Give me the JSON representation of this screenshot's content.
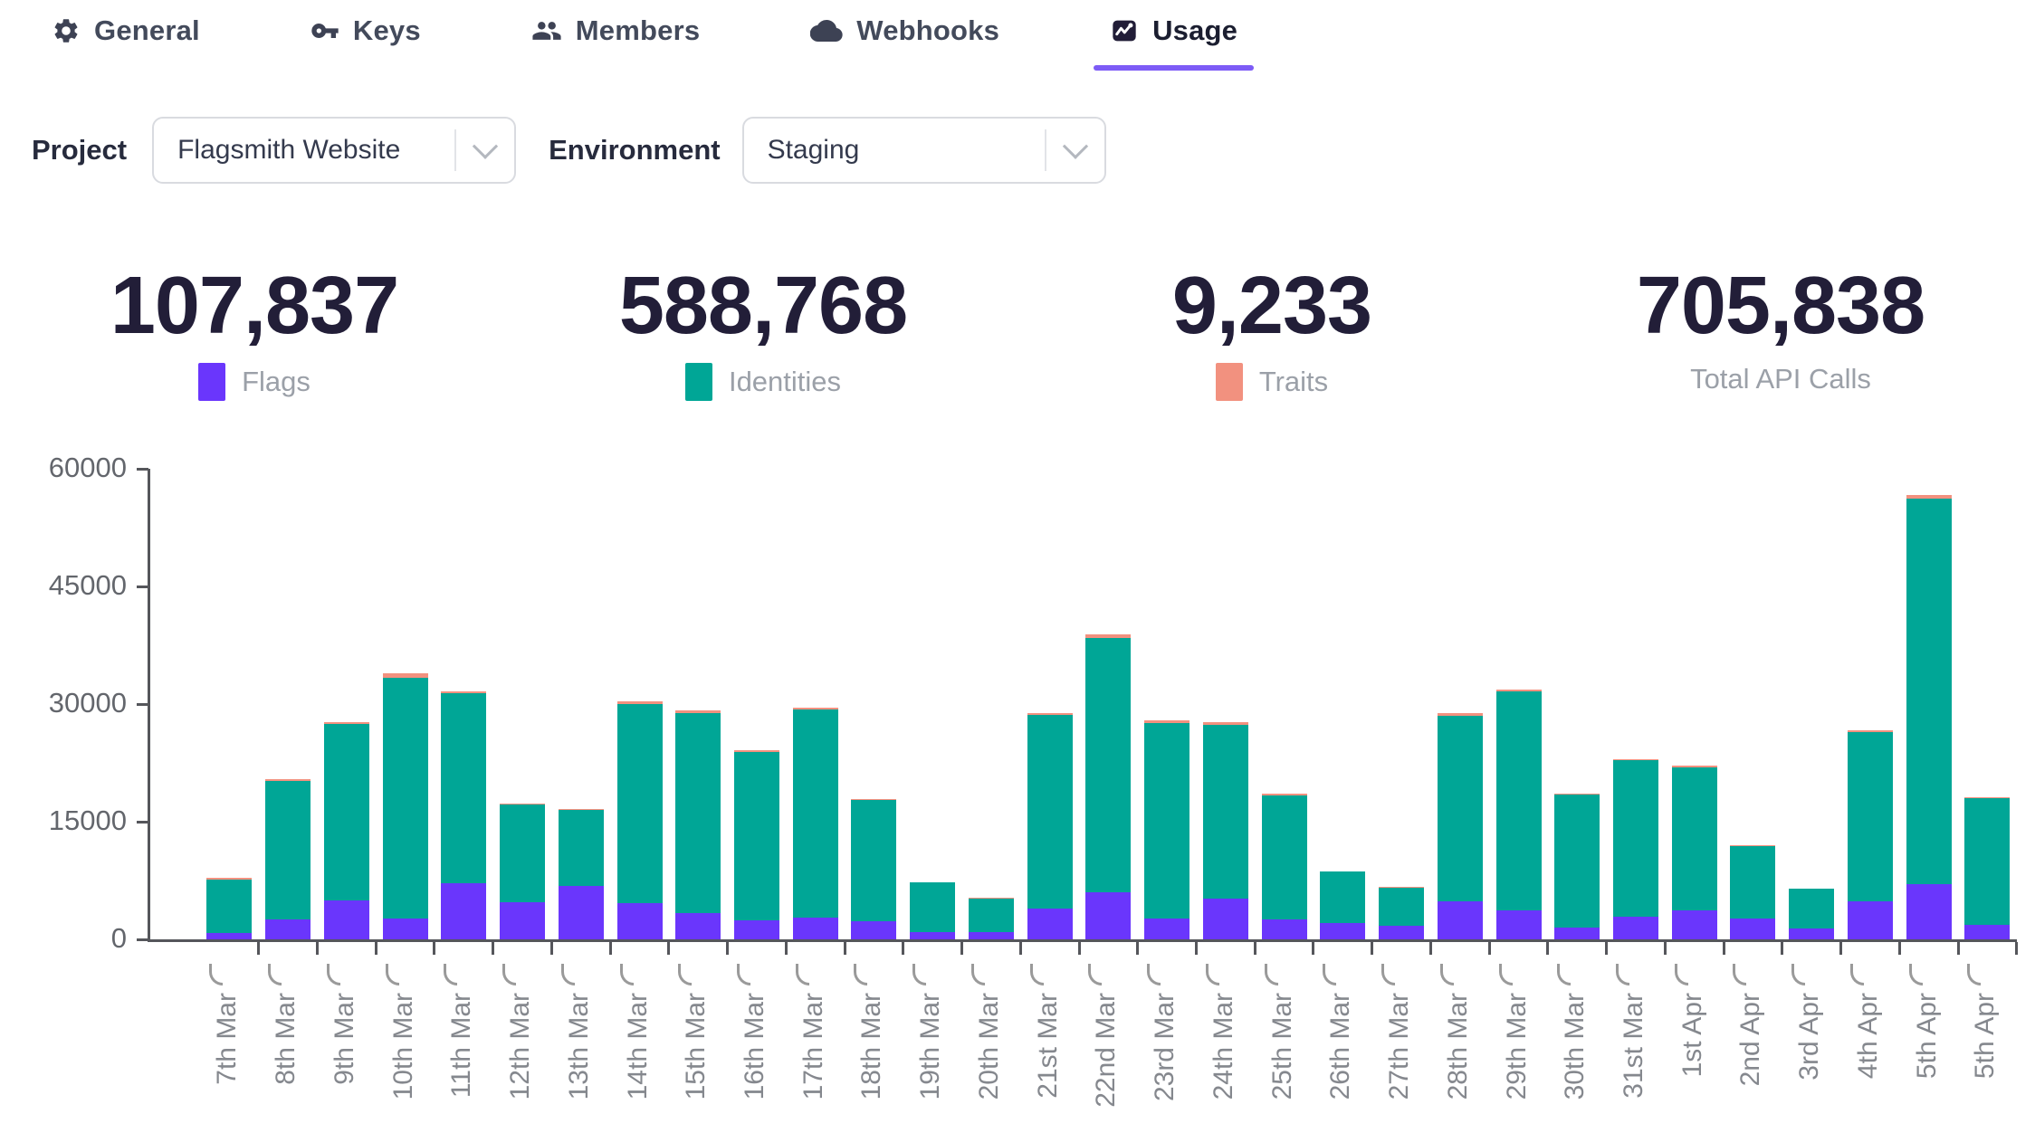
{
  "tabs": [
    {
      "label": "General",
      "icon": "gear-icon",
      "active": false
    },
    {
      "label": "Keys",
      "icon": "key-icon",
      "active": false
    },
    {
      "label": "Members",
      "icon": "members-icon",
      "active": false
    },
    {
      "label": "Webhooks",
      "icon": "webhooks-cloud-icon",
      "active": false
    },
    {
      "label": "Usage",
      "icon": "usage-chart-icon",
      "active": true
    }
  ],
  "filters": {
    "project": {
      "label": "Project",
      "value": "Flagsmith Website"
    },
    "environment": {
      "label": "Environment",
      "value": "Staging"
    }
  },
  "stats": [
    {
      "value": "107,837",
      "label": "Flags",
      "swatch_key": "flags"
    },
    {
      "value": "588,768",
      "label": "Identities",
      "swatch_key": "identities"
    },
    {
      "value": "9,233",
      "label": "Traits",
      "swatch_key": "traits"
    },
    {
      "value": "705,838",
      "label": "Total API Calls",
      "swatch_key": null
    }
  ],
  "colors": {
    "flags": "#6a36fc",
    "identities": "#00a696",
    "traits": "#f2917f",
    "tab_underline": "#7d5bf6",
    "axis": "#55565b",
    "hook": "#9a9a9a"
  },
  "chart_data": {
    "type": "bar",
    "stacked": true,
    "title": "",
    "xlabel": "",
    "ylabel": "",
    "ylim": [
      0,
      60000
    ],
    "yticks": [
      0,
      15000,
      30000,
      45000,
      60000
    ],
    "grid": false,
    "legend_position": "top (as stat cards: Flags, Identities, Traits)",
    "categories": [
      "7th Mar",
      "8th Mar",
      "9th Mar",
      "10th Mar",
      "11th Mar",
      "12th Mar",
      "13th Mar",
      "14th Mar",
      "15th Mar",
      "16th Mar",
      "17th Mar",
      "18th Mar",
      "19th Mar",
      "20th Mar",
      "21st Mar",
      "22nd Mar",
      "23rd Mar",
      "24th Mar",
      "25th Mar",
      "26th Mar",
      "27th Mar",
      "28th Mar",
      "29th Mar",
      "30th Mar",
      "31st Mar",
      "1st Apr",
      "2nd Apr",
      "3rd Apr",
      "4th Apr",
      "5th Apr",
      "5th Apr"
    ],
    "series": [
      {
        "name": "Flags",
        "color_key": "flags",
        "values": [
          800,
          2500,
          5000,
          2700,
          7200,
          4700,
          6800,
          4600,
          3300,
          2400,
          2800,
          2300,
          900,
          900,
          3900,
          6000,
          2700,
          5200,
          2500,
          2100,
          1700,
          4800,
          3700,
          1500,
          2900,
          3700,
          2700,
          1400,
          4900,
          7100,
          1800
        ]
      },
      {
        "name": "Identities",
        "color_key": "identities",
        "values": [
          6850,
          17700,
          22450,
          30600,
          24150,
          12500,
          9700,
          25400,
          25500,
          21450,
          26500,
          15500,
          6320,
          4340,
          24700,
          32400,
          24900,
          22150,
          15900,
          6520,
          4940,
          23750,
          27900,
          16950,
          19900,
          18250,
          9220,
          5040,
          21500,
          49100,
          16150
        ]
      },
      {
        "name": "Traits",
        "color_key": "traits",
        "values": [
          150,
          200,
          250,
          600,
          250,
          100,
          100,
          400,
          400,
          250,
          200,
          100,
          80,
          60,
          300,
          500,
          300,
          350,
          200,
          80,
          60,
          350,
          300,
          150,
          200,
          150,
          80,
          60,
          300,
          500,
          150
        ]
      }
    ]
  }
}
